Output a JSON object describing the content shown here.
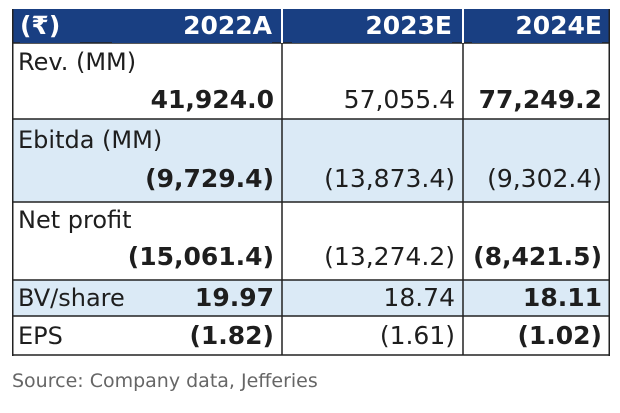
{
  "header": {
    "currency": "(₹)",
    "years": [
      "2022A",
      "2023E",
      "2024E"
    ]
  },
  "colors": {
    "header_bg": "#193f82",
    "alt_row_bg": "#dbeaf6",
    "border": "#222222"
  },
  "rows": [
    {
      "label": "Rev. (MM)",
      "values": [
        "41,924.0",
        "57,055.4",
        "77,249.2"
      ]
    },
    {
      "label": "Ebitda (MM)",
      "values": [
        "(9,729.4)",
        "(13,873.4)",
        "(9,302.4)"
      ]
    },
    {
      "label": "Net profit",
      "values": [
        "(15,061.4)",
        "(13,274.2)",
        "(8,421.5)"
      ]
    },
    {
      "label": "BV/share",
      "values": [
        "19.97",
        "18.74",
        "18.11"
      ]
    },
    {
      "label": "EPS",
      "values": [
        "(1.82)",
        "(1.61)",
        "(1.02)"
      ]
    }
  ],
  "source": "Source: Company data, Jefferies"
}
